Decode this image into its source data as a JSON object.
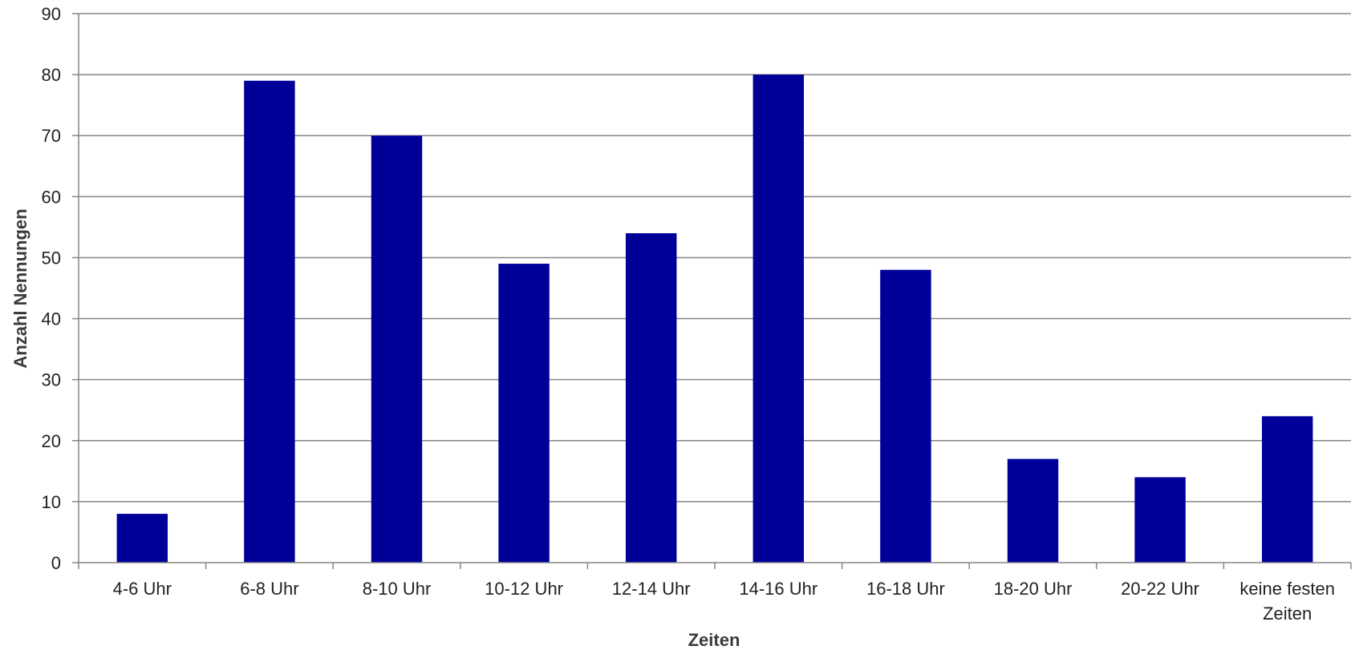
{
  "chart_data": {
    "type": "bar",
    "title": "",
    "xlabel": "Zeiten",
    "ylabel": "Anzahl Nennungen",
    "categories": [
      [
        "4-6 Uhr"
      ],
      [
        "6-8 Uhr"
      ],
      [
        "8-10 Uhr"
      ],
      [
        "10-12 Uhr"
      ],
      [
        "12-14 Uhr"
      ],
      [
        "14-16 Uhr"
      ],
      [
        "16-18 Uhr"
      ],
      [
        "18-20 Uhr"
      ],
      [
        "20-22 Uhr"
      ],
      [
        "keine festen",
        "Zeiten"
      ]
    ],
    "values": [
      8,
      79,
      70,
      49,
      54,
      80,
      48,
      17,
      14,
      24
    ],
    "ylim": [
      0,
      90
    ],
    "yticks": [
      0,
      10,
      20,
      30,
      40,
      50,
      60,
      70,
      80,
      90
    ],
    "grid": true,
    "legend": "none",
    "bar_color": "#000099",
    "grid_color": "#868686"
  }
}
